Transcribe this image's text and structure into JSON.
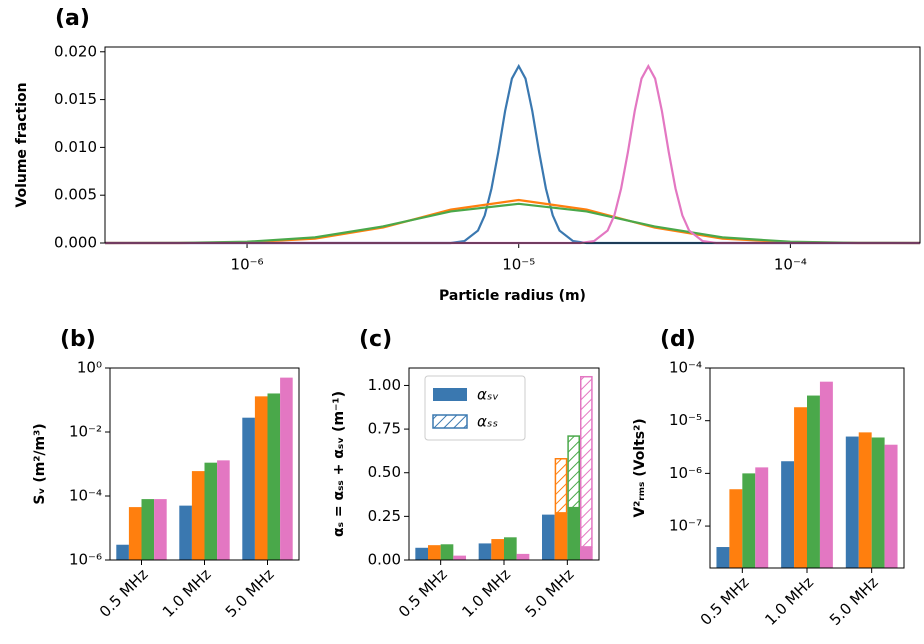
{
  "chart_data": [
    {
      "type": "line",
      "label": "(a)",
      "xlabel": "Particle radius (m)",
      "ylabel": "Volume fraction",
      "xscale": "log",
      "xlim": [
        3e-07,
        0.0003
      ],
      "xticks": [
        {
          "value": 1e-06,
          "label": "10⁻⁶"
        },
        {
          "value": 1e-05,
          "label": "10⁻⁵"
        },
        {
          "value": 0.0001,
          "label": "10⁻⁴"
        }
      ],
      "ylim": [
        0,
        0.0205
      ],
      "yticks": [
        {
          "value": 0,
          "label": "0.000"
        },
        {
          "value": 0.005,
          "label": "0.005"
        },
        {
          "value": 0.01,
          "label": "0.010"
        },
        {
          "value": 0.015,
          "label": "0.015"
        },
        {
          "value": 0.02,
          "label": "0.020"
        }
      ],
      "series": [
        {
          "color": "#3a78b0",
          "x": [
            3e-07,
            5.62e-06,
            6.31e-06,
            7.08e-06,
            7.5e-06,
            7.94e-06,
            8.41e-06,
            8.91e-06,
            9.44e-06,
            1e-05,
            1.059e-05,
            1.122e-05,
            1.189e-05,
            1.259e-05,
            1.334e-05,
            1.413e-05,
            1.585e-05,
            1.778e-05,
            0.0003
          ],
          "values": [
            0,
            0,
            0.0002,
            0.0013,
            0.0029,
            0.0057,
            0.0095,
            0.0138,
            0.0172,
            0.0185,
            0.0172,
            0.0138,
            0.0095,
            0.0057,
            0.0029,
            0.0013,
            0.0002,
            0,
            0
          ]
        },
        {
          "color": "#ff7f0e",
          "x": [
            3e-07,
            5.62e-07,
            1e-06,
            1.778e-06,
            3.162e-06,
            5.623e-06,
            1e-05,
            1.778e-05,
            3.162e-05,
            5.623e-05,
            0.0001,
            0.0001778,
            0.0003
          ],
          "values": [
            0,
            0,
            8e-05,
            0.00045,
            0.00162,
            0.00349,
            0.0045,
            0.00349,
            0.00162,
            0.00045,
            8e-05,
            0,
            0
          ]
        },
        {
          "color": "#4aa84a",
          "x": [
            3e-07,
            5.62e-07,
            1e-06,
            1.778e-06,
            3.162e-06,
            5.623e-06,
            1e-05,
            1.778e-05,
            3.162e-05,
            5.623e-05,
            0.0001,
            0.0001778,
            0.0003
          ],
          "values": [
            0,
            2e-05,
            0.00013,
            0.00059,
            0.00173,
            0.0033,
            0.0041,
            0.0033,
            0.00173,
            0.00059,
            0.00013,
            2e-05,
            0
          ]
        },
        {
          "color": "#e377c2",
          "x": [
            3e-07,
            1.686e-05,
            1.893e-05,
            2.124e-05,
            2.25e-05,
            2.382e-05,
            2.523e-05,
            2.673e-05,
            2.832e-05,
            3e-05,
            3.177e-05,
            3.366e-05,
            3.567e-05,
            3.777e-05,
            4.002e-05,
            4.239e-05,
            4.755e-05,
            5.334e-05,
            0.0003
          ],
          "values": [
            0,
            0,
            0.0002,
            0.0013,
            0.0029,
            0.0057,
            0.0095,
            0.0138,
            0.0172,
            0.0185,
            0.0172,
            0.0138,
            0.0095,
            0.0057,
            0.0029,
            0.0013,
            0.0002,
            0,
            0
          ]
        }
      ]
    },
    {
      "type": "bar",
      "label": "(b)",
      "ylabel": "Sᵥ (m²/m³)",
      "yscale": "log",
      "ylim": [
        1e-06,
        1
      ],
      "yticks": [
        {
          "value": 1e-06,
          "label": "10⁻⁶"
        },
        {
          "value": 0.0001,
          "label": "10⁻⁴"
        },
        {
          "value": 0.01,
          "label": "10⁻²"
        },
        {
          "value": 1,
          "label": "10⁰"
        }
      ],
      "categories": [
        "0.5 MHz",
        "1.0 MHz",
        "5.0 MHz"
      ],
      "series": [
        {
          "color": "#3a78b0",
          "values": [
            3e-06,
            5e-05,
            0.028
          ]
        },
        {
          "color": "#ff7f0e",
          "values": [
            4.5e-05,
            0.0006,
            0.13
          ]
        },
        {
          "color": "#4aa84a",
          "values": [
            8e-05,
            0.0011,
            0.16
          ]
        },
        {
          "color": "#e377c2",
          "values": [
            8e-05,
            0.0013,
            0.5
          ]
        }
      ]
    },
    {
      "type": "bar",
      "label": "(c)",
      "ylabel": "αₛ = αₛₛ + αₛᵥ (m⁻¹)",
      "ylim": [
        0,
        1.1
      ],
      "yticks": [
        {
          "value": 0,
          "label": "0.00"
        },
        {
          "value": 0.25,
          "label": "0.25"
        },
        {
          "value": 0.5,
          "label": "0.50"
        },
        {
          "value": 0.75,
          "label": "0.75"
        },
        {
          "value": 1,
          "label": "1.00"
        }
      ],
      "categories": [
        "0.5 MHz",
        "1.0 MHz",
        "5.0 MHz"
      ],
      "legend": "upper left",
      "legend_labels": [
        "αₛᵥ",
        "αₛₛ"
      ],
      "series": [
        {
          "color": "#3a78b0",
          "values": [
            0.07,
            0.095,
            0.26
          ],
          "hatch_values": [
            0,
            0,
            0
          ]
        },
        {
          "color": "#ff7f0e",
          "values": [
            0.085,
            0.12,
            0.27
          ],
          "hatch_values": [
            0,
            0,
            0.31
          ]
        },
        {
          "color": "#4aa84a",
          "values": [
            0.09,
            0.13,
            0.3
          ],
          "hatch_values": [
            0,
            0,
            0.41
          ]
        },
        {
          "color": "#e377c2",
          "values": [
            0.025,
            0.035,
            0.075
          ],
          "hatch_values": [
            0,
            0,
            0.975
          ]
        }
      ]
    },
    {
      "type": "bar",
      "label": "(d)",
      "ylabel": "V²ᵣₘₛ (Volts²)",
      "yscale": "log",
      "ylim": [
        1.6e-08,
        0.0001
      ],
      "yticks": [
        {
          "value": 1e-07,
          "label": "10⁻⁷"
        },
        {
          "value": 1e-06,
          "label": "10⁻⁶"
        },
        {
          "value": 1e-05,
          "label": "10⁻⁵"
        },
        {
          "value": 0.0001,
          "label": "10⁻⁴"
        }
      ],
      "categories": [
        "0.5 MHz",
        "1.0 MHz",
        "5.0 MHz"
      ],
      "series": [
        {
          "color": "#3a78b0",
          "values": [
            4e-08,
            1.7e-06,
            5e-06
          ]
        },
        {
          "color": "#ff7f0e",
          "values": [
            5e-07,
            1.8e-05,
            6e-06
          ]
        },
        {
          "color": "#4aa84a",
          "values": [
            1e-06,
            3e-05,
            4.8e-06
          ]
        },
        {
          "color": "#e377c2",
          "values": [
            1.3e-06,
            5.5e-05,
            3.5e-06
          ]
        }
      ]
    }
  ]
}
